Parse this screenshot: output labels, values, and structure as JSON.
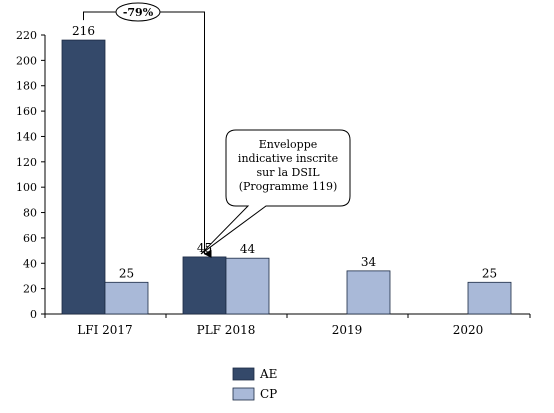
{
  "chart_data": {
    "type": "bar",
    "categories": [
      "LFI 2017",
      "PLF 2018",
      "2019",
      "2020"
    ],
    "series": [
      {
        "name": "AE",
        "values": [
          216,
          45,
          null,
          null
        ],
        "color": "#34496a"
      },
      {
        "name": "CP",
        "values": [
          25,
          44,
          34,
          25
        ],
        "color": "#a9b9d8"
      }
    ],
    "ylim": [
      0,
      220
    ],
    "yticks": [
      0,
      20,
      40,
      60,
      80,
      100,
      120,
      140,
      160,
      180,
      200,
      220
    ],
    "data_labels": {
      "AE": [
        "216",
        "45",
        "",
        ""
      ],
      "CP": [
        "25",
        "44",
        "34",
        "25"
      ]
    },
    "legend": {
      "position": "bottom-center",
      "entries": [
        "AE",
        "CP"
      ]
    },
    "annotations": {
      "change": "-79%",
      "callout": [
        "Enveloppe",
        "indicative inscrite",
        "sur la DSIL",
        "(Programme 119)"
      ]
    },
    "grid": false
  }
}
